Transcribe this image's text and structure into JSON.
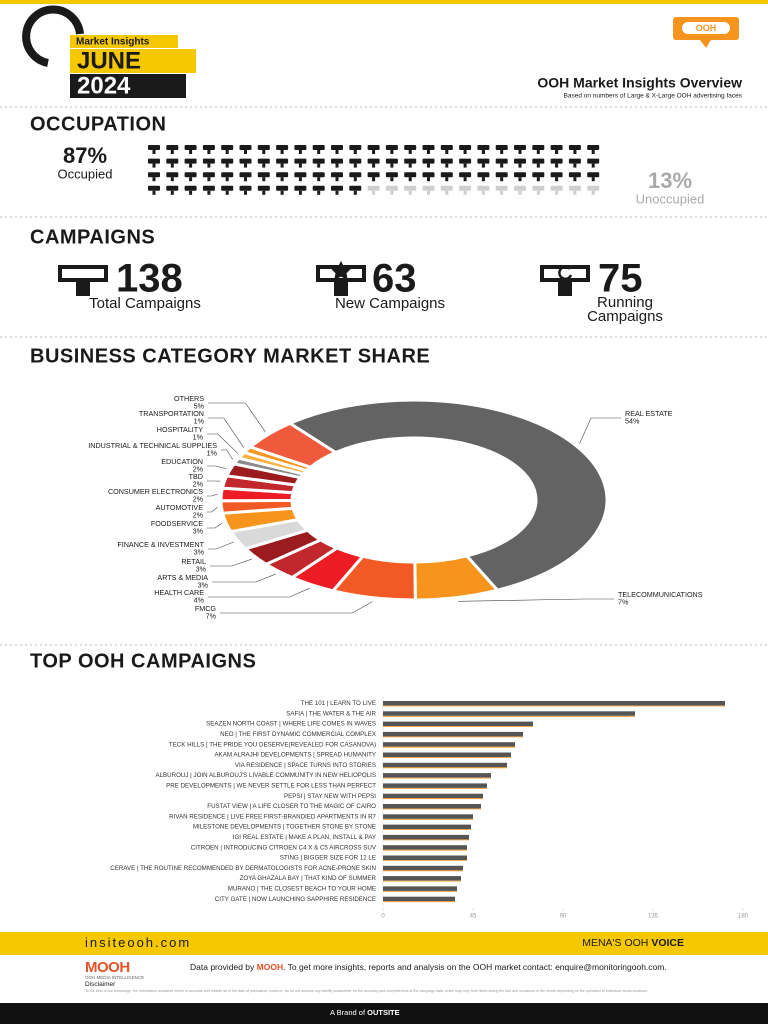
{
  "header": {
    "badge": "Market Insights",
    "month": "JUNE",
    "year": "2024",
    "logo": "OOH",
    "title": "OOH Market Insights Overview",
    "subtitle": "Based on numbers of Large & X-Large OOH advertising faces"
  },
  "occupation": {
    "title": "OCCUPATION",
    "occupied": {
      "value": 87,
      "value_label": "87%",
      "label": "Occupied",
      "color": "#1a1a1a"
    },
    "unoccupied": {
      "value": 13,
      "value_label": "13%",
      "label": "Unoccupied",
      "color": "#cfcfcf"
    }
  },
  "campaigns": {
    "title": "CAMPAIGNS",
    "items": [
      {
        "value": 138,
        "label": "Total Campaigns"
      },
      {
        "value": 63,
        "label": "New Campaigns"
      },
      {
        "value": 75,
        "label": "Running Campaigns"
      }
    ]
  },
  "chart_data": [
    {
      "type": "pie",
      "donut": true,
      "title": "BUSINESS CATEGORY MARKET SHARE",
      "categories": [
        "REAL ESTATE",
        "TELECOMMUNICATIONS",
        "FMCG",
        "HEALTH CARE",
        "ARTS & MEDIA",
        "RETAIL",
        "FINANCE & INVESTMENT",
        "FOODSERVICE",
        "AUTOMOTIVE",
        "CONSUMER ELECTRONICS",
        "TBD",
        "EDUCATION",
        "INDUSTRIAL & TECHNICAL SUPPLIES",
        "HOSPITALITY",
        "TRANSPORTATION",
        "OTHERS"
      ],
      "values": [
        54,
        7,
        7,
        4,
        3,
        3,
        3,
        3,
        2,
        2,
        2,
        2,
        1,
        1,
        1,
        5
      ],
      "value_labels": [
        "54%",
        "7%",
        "7%",
        "4%",
        "3%",
        "3%",
        "3%",
        "3%",
        "2%",
        "2%",
        "2%",
        "2%",
        "1%",
        "1%",
        "1%",
        "5%"
      ],
      "colors": [
        "#636363",
        "#f7941d",
        "#f15a24",
        "#ed1c24",
        "#c1272d",
        "#9b1b1f",
        "#d9d9d9",
        "#f7941d",
        "#f15a24",
        "#ed1c24",
        "#c1272d",
        "#9b1b1f",
        "#8a8a8a",
        "#fbb040",
        "#f7941d",
        "#ef5a3c"
      ]
    },
    {
      "type": "bar",
      "orientation": "horizontal",
      "title": "TOP OOH CAMPAIGNS",
      "categories": [
        "THE 101 | LEARN TO LIVE",
        "SAFIA | THE WATER & THE AIR",
        "SEAZEN NORTH COAST | WHERE LIFE COMES IN WAVES",
        "NEO | THE FIRST DYNAMIC COMMERCIAL COMPLEX",
        "TECK HILLS | THE PRIDE YOU DESERVE(REVEALED FOR CASANOVA)",
        "AKAM ALRAJHI DEVELOPMENTS | SPREAD HUMANITY",
        "VIA RESIDENCE | SPACE TURNS INTO STORIES",
        "ALBUROUJ | JOIN ALBUROUJ'S LIVABLE COMMUNITY IN NEW HELIOPOLIS",
        "PRE DEVELOPMENTS | WE NEVER SETTLE FOR LESS THAN PERFECT",
        "PEPSI | STAY NEW WITH PEPSI",
        "FUSTAT VIEW | A LIFE CLOSER TO THE MAGIC OF CAIRO",
        "RIVAN RESIDENCE | LIVE FREE FIRST-BRANDIED APARTMENTS IN R7",
        "MILESTONE DEVELOPMENTS | TOGETHER STONE BY STONE",
        "IGI REAL ESTATE | MAKE A PLAN, INSTALL & PAY",
        "CITROEN | INTRODUCING CITROEN C4 X & C5 AIRCROSS SUV",
        "STING | BIGGER SIZE FOR 12 LE",
        "CERAVE | THE ROUTINE RECOMMENDED BY DERMATOLOGISTS FOR ACNE-PRONE SKIN",
        "ZOYA GHAZALA BAY | THAT KIND OF SUMMER",
        "MURANO | THE CLOSEST BEACH TO YOUR HOME",
        "CITY GATE | NOW LAUNCHING SAPPHIRE RESIDENCE"
      ],
      "values": [
        171,
        126,
        75,
        70,
        66,
        64,
        62,
        54,
        52,
        50,
        49,
        45,
        44,
        43,
        42,
        42,
        40,
        39,
        37,
        36
      ],
      "xlim": [
        0,
        180
      ],
      "xticks": [
        0,
        45,
        90,
        135,
        180
      ],
      "color": "#555555",
      "accent_color": "#f7941d"
    }
  ],
  "footer": {
    "site": "insiteooh.com",
    "tagline": "MENA'S OOH",
    "tagline_bold": "VOICE",
    "brand": "MOOH",
    "brand_sub": "OOH MEDIA INTELLIGENCE",
    "data_prefix": "Data provided by",
    "data_brand": "MOOH",
    "data_text": ". To get more insights, reports and analysis on the OOH market contact: enquire@monitoringooh.com.",
    "disclaimer_title": "Disclaimer",
    "disclaimer": "To the best of our knowledge, the information contained herein is accurate and reliable as of the date of publication; however, we do not assume any liability whatsoever for the accuracy and completeness of the campaign data, which may vary from listed during the fact and occasions of the month depending on the operation of individual media locations.",
    "brand_of": "A Brand of",
    "parent": "OUTSITE"
  }
}
